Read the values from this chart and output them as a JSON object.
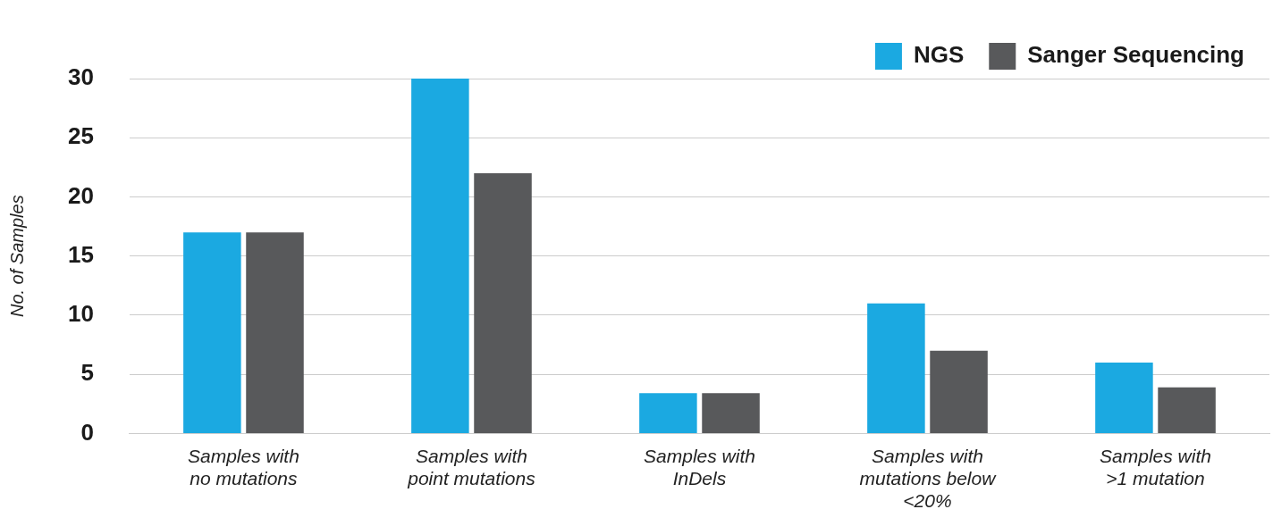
{
  "chart_data": {
    "type": "bar",
    "ylabel": "No. of Samples",
    "categories": [
      "Samples with\nno mutations",
      "Samples with\npoint mutations",
      "Samples with\nInDels",
      "Samples with\nmutations below\n<20%",
      "Samples with\n>1 mutation"
    ],
    "series": [
      {
        "name": "NGS",
        "color": "#1ba9e1",
        "values": [
          17,
          30,
          3.4,
          11,
          6
        ]
      },
      {
        "name": "Sanger Sequencing",
        "color": "#58595b",
        "values": [
          17,
          22,
          3.4,
          7,
          3.9
        ]
      }
    ],
    "ylim": [
      0,
      30
    ],
    "yticks": [
      0,
      5,
      10,
      15,
      20,
      25,
      30
    ],
    "grid": "y",
    "legend": "top right"
  }
}
